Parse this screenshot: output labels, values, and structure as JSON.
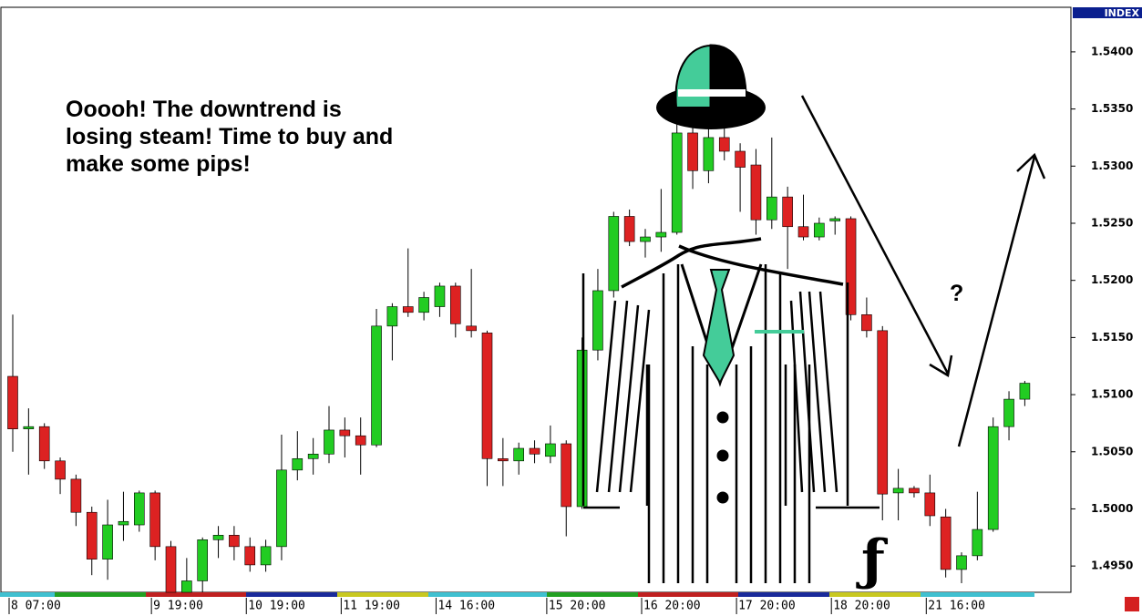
{
  "chart_data": {
    "type": "candlestick",
    "axis_title": "INDEX",
    "annotation": [
      "Ooooh! The downtrend is",
      "losing steam! Time to buy and",
      "make some pips!"
    ],
    "question": "?",
    "up_color": "#22cc22",
    "down_color": "#dd2222",
    "categories": [
      "8 07:00",
      null,
      null,
      null,
      null,
      null,
      null,
      null,
      null,
      "9 19:00",
      null,
      null,
      null,
      null,
      null,
      "10 19:00",
      null,
      null,
      null,
      null,
      null,
      "11 19:00",
      null,
      null,
      null,
      null,
      null,
      "14 16:00",
      null,
      null,
      null,
      null,
      null,
      null,
      "15 20:00",
      null,
      null,
      null,
      null,
      null,
      "16 20:00",
      null,
      null,
      null,
      null,
      null,
      "17 20:00",
      null,
      null,
      null,
      null,
      null,
      "18 20:00",
      null,
      null,
      null,
      null,
      null,
      "21 16:00",
      null,
      null,
      null,
      null,
      null,
      null
    ],
    "open": [
      1.5116,
      1.507,
      1.5072,
      1.5042,
      1.5026,
      1.4997,
      1.4956,
      1.4986,
      1.4986,
      1.5014,
      1.4967,
      1.4927,
      1.4937,
      1.4973,
      1.4977,
      1.4967,
      1.4951,
      1.4967,
      1.5034,
      1.5044,
      1.5048,
      1.5069,
      1.5064,
      1.5056,
      1.516,
      1.5177,
      1.5172,
      1.5177,
      1.5195,
      1.516,
      1.5154,
      1.5044,
      1.5042,
      1.5053,
      1.5046,
      1.5057,
      1.5002,
      1.5139,
      1.5191,
      1.5256,
      1.5234,
      1.5238,
      1.5242,
      1.5329,
      1.5296,
      1.5325,
      1.5313,
      1.5301,
      1.5253,
      1.5273,
      1.5247,
      1.5238,
      1.5252,
      1.5254,
      1.517,
      1.5156,
      1.5014,
      1.5018,
      1.5014,
      1.4993,
      1.4947,
      1.4959,
      1.4982,
      1.5072,
      1.5096
    ],
    "high": [
      1.517,
      1.5088,
      1.5075,
      1.5045,
      1.503,
      1.5002,
      1.5008,
      1.5015,
      1.5016,
      1.5016,
      1.4972,
      1.4957,
      1.4975,
      1.4985,
      1.4985,
      1.4975,
      1.4973,
      1.5065,
      1.5068,
      1.5062,
      1.509,
      1.508,
      1.508,
      1.5175,
      1.518,
      1.5228,
      1.519,
      1.5198,
      1.5198,
      1.521,
      1.5156,
      1.5062,
      1.5058,
      1.506,
      1.5073,
      1.506,
      1.515,
      1.521,
      1.526,
      1.5262,
      1.5245,
      1.528,
      1.5345,
      1.534,
      1.5335,
      1.5345,
      1.532,
      1.5315,
      1.5325,
      1.5282,
      1.5275,
      1.5255,
      1.5256,
      1.5256,
      1.5185,
      1.516,
      1.5035,
      1.502,
      1.503,
      1.5,
      1.4962,
      1.5015,
      1.508,
      1.5103,
      1.5112
    ],
    "low": [
      1.505,
      1.503,
      1.5035,
      1.5013,
      1.4985,
      1.4942,
      1.4938,
      1.4972,
      1.498,
      1.4955,
      1.4927,
      1.4927,
      1.4927,
      1.4957,
      1.4955,
      1.4945,
      1.4945,
      1.4955,
      1.5025,
      1.503,
      1.504,
      1.5045,
      1.503,
      1.5054,
      1.513,
      1.5168,
      1.5165,
      1.5168,
      1.515,
      1.515,
      1.502,
      1.502,
      1.503,
      1.504,
      1.504,
      1.4976,
      1.5,
      1.513,
      1.5185,
      1.523,
      1.522,
      1.5225,
      1.524,
      1.528,
      1.5285,
      1.5305,
      1.526,
      1.524,
      1.5245,
      1.521,
      1.5235,
      1.5235,
      1.524,
      1.5165,
      1.515,
      1.499,
      1.499,
      1.501,
      1.4985,
      1.494,
      1.4935,
      1.4955,
      1.498,
      1.506,
      1.509
    ],
    "close": [
      1.507,
      1.5072,
      1.5042,
      1.5026,
      1.4997,
      1.4956,
      1.4986,
      1.4989,
      1.5014,
      1.4967,
      1.4927,
      1.4937,
      1.4973,
      1.4977,
      1.4967,
      1.4951,
      1.4967,
      1.5034,
      1.5044,
      1.5048,
      1.5069,
      1.5064,
      1.5056,
      1.516,
      1.5177,
      1.5172,
      1.5185,
      1.5195,
      1.5162,
      1.5156,
      1.5044,
      1.5042,
      1.5053,
      1.5048,
      1.5057,
      1.5002,
      1.5139,
      1.5191,
      1.5256,
      1.5234,
      1.5238,
      1.5242,
      1.5329,
      1.5296,
      1.5325,
      1.5313,
      1.5299,
      1.5253,
      1.5273,
      1.5247,
      1.5238,
      1.525,
      1.5254,
      1.517,
      1.5156,
      1.5013,
      1.5018,
      1.5014,
      1.4994,
      1.4947,
      1.4959,
      1.4982,
      1.5072,
      1.5096,
      1.511
    ],
    "ylim": [
      1.4927,
      1.5439
    ],
    "yticks": [
      {
        "value": 1.495,
        "label": "1.4950"
      },
      {
        "value": 1.5,
        "label": "1.5000"
      },
      {
        "value": 1.505,
        "label": "1.5050"
      },
      {
        "value": 1.51,
        "label": "1.5100"
      },
      {
        "value": 1.515,
        "label": "1.5150"
      },
      {
        "value": 1.52,
        "label": "1.5200"
      },
      {
        "value": 1.525,
        "label": "1.5250"
      },
      {
        "value": 1.53,
        "label": "1.5300"
      },
      {
        "value": 1.535,
        "label": "1.5350"
      },
      {
        "value": 1.54,
        "label": "1.5400"
      }
    ]
  }
}
